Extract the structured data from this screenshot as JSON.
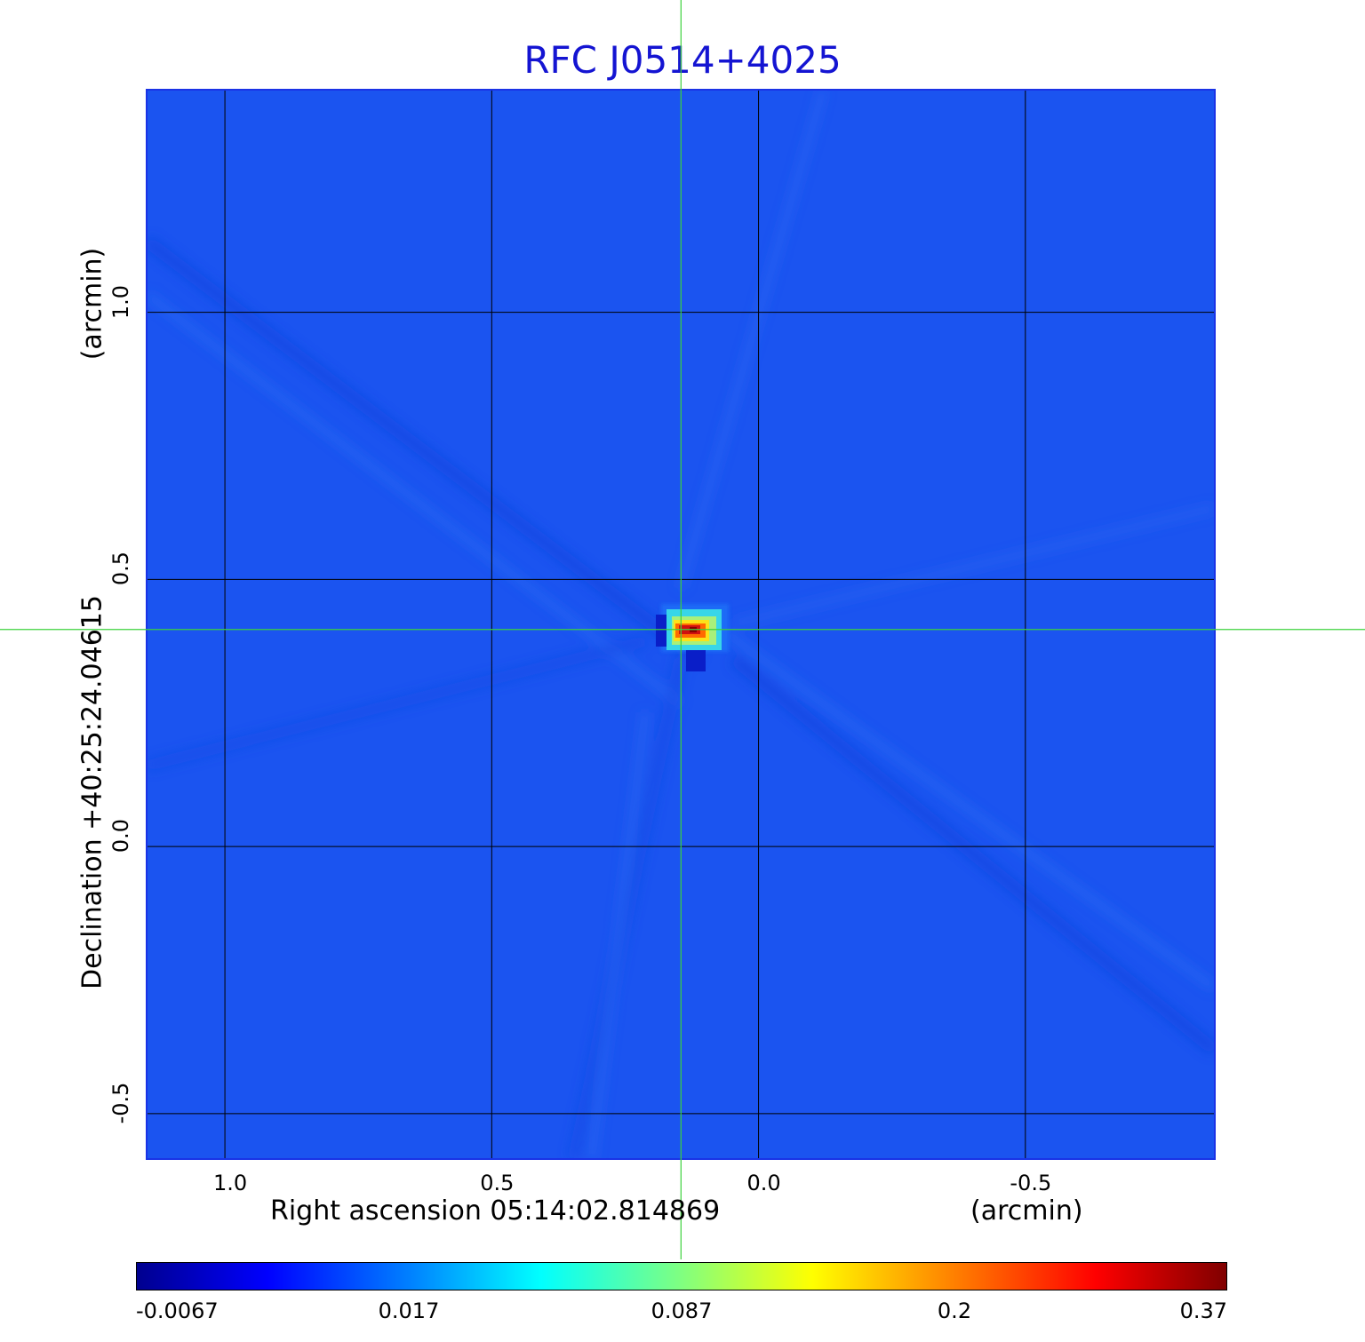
{
  "title": "RFC J0514+4025",
  "chart_data": {
    "type": "heatmap",
    "title": "RFC J0514+4025",
    "xlabel": "Right ascension  05:14:02.814869",
    "xunit": "(arcmin)",
    "ylabel": "Declination  +40:25:24.04615",
    "yunit": "(arcmin)",
    "x_ticks": [
      1.0,
      0.5,
      0.0,
      -0.5
    ],
    "x_tick_labels": [
      "1.0",
      "0.5",
      "0.0",
      "-0.5"
    ],
    "y_ticks": [
      1.0,
      0.5,
      0.0,
      -0.5
    ],
    "y_tick_labels": [
      "1.0",
      "0.5",
      "0.0",
      "-0.5"
    ],
    "xlim": [
      1.145,
      -0.86
    ],
    "ylim": [
      -0.59,
      1.415
    ],
    "grid": true,
    "crosshair": {
      "x": 0.142,
      "y": 0.403
    },
    "peak": {
      "x": 0.142,
      "y": 0.403,
      "value": 0.37
    },
    "colorbar": {
      "tick_labels": [
        "-0.0067",
        "0.017",
        "0.087",
        "0.2",
        "0.37"
      ],
      "min": -0.0067,
      "max": 0.37,
      "colormap": "jet"
    }
  },
  "colors": {
    "title": "#1414d2",
    "background_field": "#1b54f0",
    "grid": "#000000",
    "crosshair": "#3cd23c"
  }
}
